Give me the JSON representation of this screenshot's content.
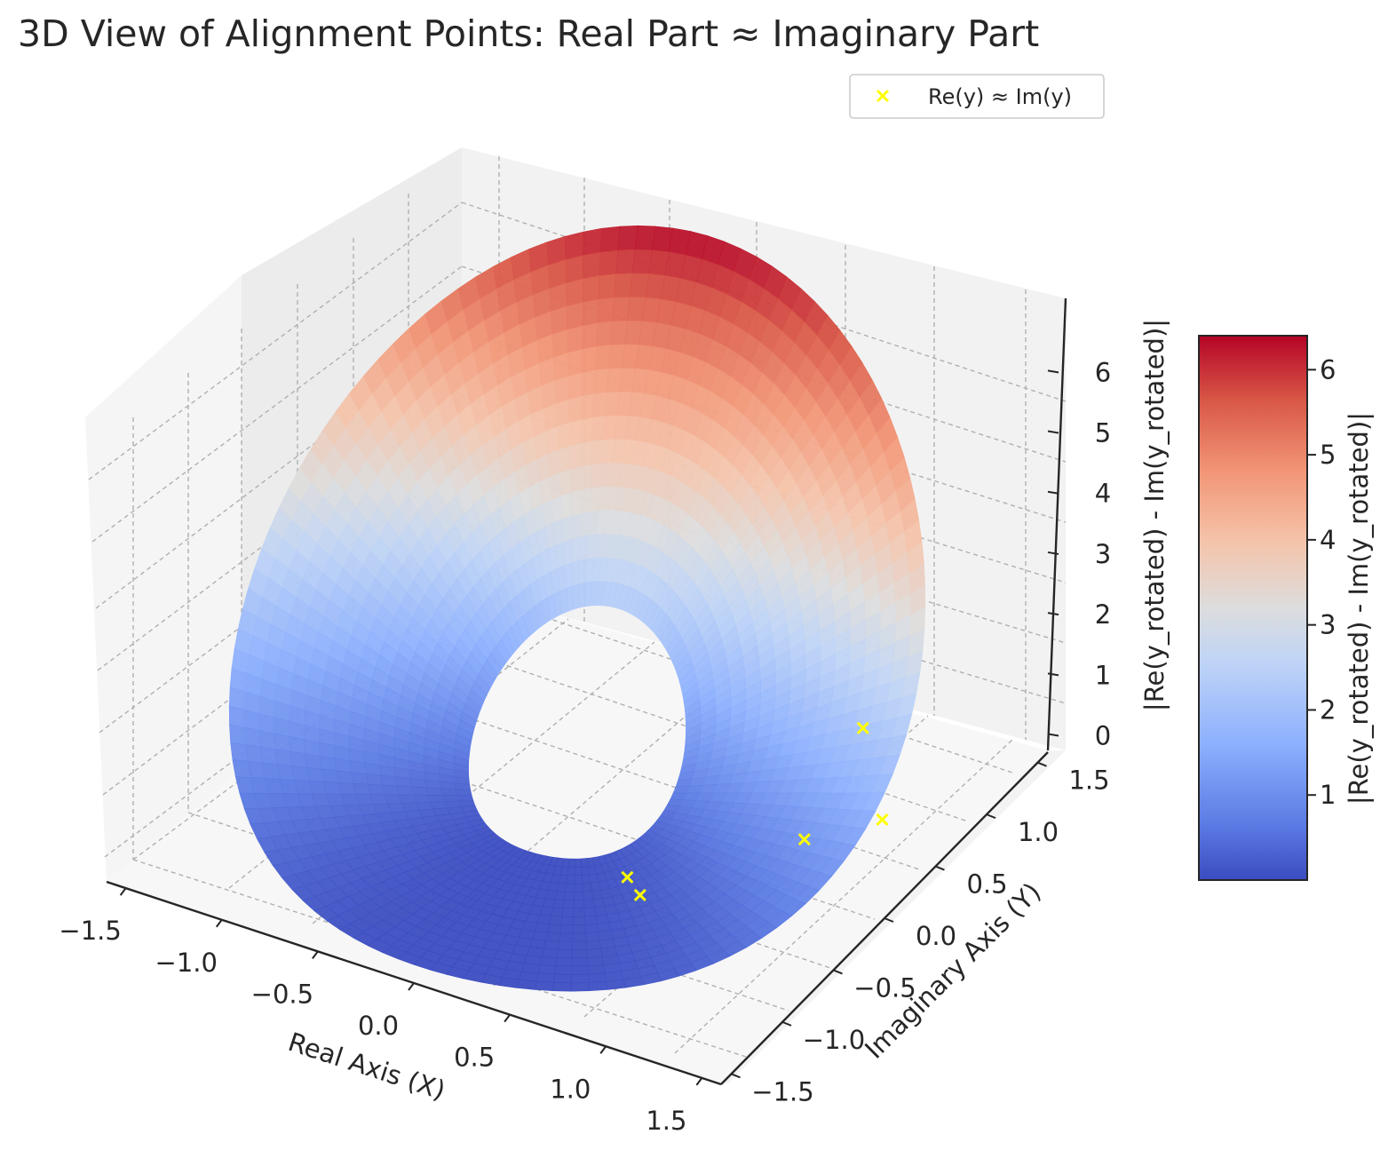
{
  "chart_data": {
    "type": "surface3d",
    "title": "3D View of Alignment Points: Real Part ≈ Imaginary Part",
    "xlabel": "Real Axis (X)",
    "ylabel": "Imaginary Axis (Y)",
    "zlabel": "|Re(y_rotated) - Im(y_rotated)|",
    "colorbar_label": "|Re(y_rotated) - Im(y_rotated)|",
    "colormap": "coolwarm",
    "colors": {
      "low": "#3b4cc0",
      "mid": "#dddddd",
      "high": "#b40426",
      "scatter": "#ffff00"
    },
    "xticks": [
      "−1.5",
      "−1.0",
      "−0.5",
      "0.0",
      "0.5",
      "1.0",
      "1.5"
    ],
    "yticks": [
      "−1.5",
      "−1.0",
      "−0.5",
      "0.0",
      "0.5",
      "1.0",
      "1.5"
    ],
    "zticks": [
      "0",
      "1",
      "2",
      "3",
      "4",
      "5",
      "6"
    ],
    "colorbar_ticks": [
      "1",
      "2",
      "3",
      "4",
      "5",
      "6"
    ],
    "xlim": [
      -1.6,
      1.6
    ],
    "ylim": [
      -1.6,
      1.6
    ],
    "zlim": [
      -0.3,
      6.9
    ],
    "colorbar_range": [
      0,
      6.4
    ],
    "legend": {
      "position": "top-right",
      "entries": [
        {
          "label": "Re(y) ≈ Im(y)",
          "marker": "x",
          "color": "#ffff00"
        }
      ]
    },
    "grid": true,
    "surface_domain": {
      "r_min": 0.5,
      "r_max": 1.6,
      "theta_deg": [
        0,
        360
      ]
    },
    "surface_peak": {
      "x": -0.2,
      "y": 1.3,
      "z": 6.4
    },
    "scatter_points": [
      {
        "x": 0.62,
        "y": -0.55,
        "z": 0.0
      },
      {
        "x": 1.05,
        "y": 0.25,
        "z": 0.0
      },
      {
        "x": 1.28,
        "y": 0.58,
        "z": 0.0
      },
      {
        "x": 0.85,
        "y": 1.2,
        "z": 0.0
      },
      {
        "x": 0.5,
        "y": -0.45,
        "z": 0.0
      }
    ]
  }
}
